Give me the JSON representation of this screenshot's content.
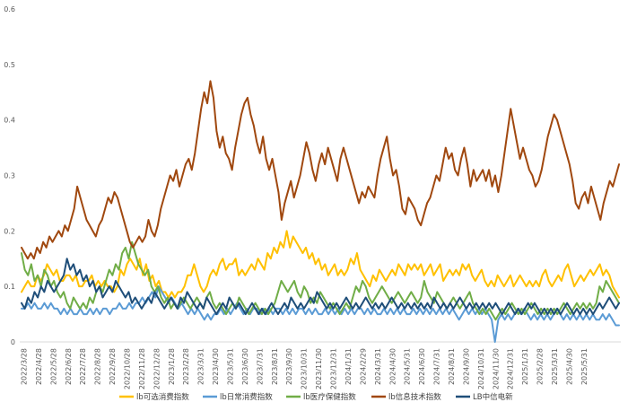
{
  "chart_data": {
    "type": "line",
    "title": "",
    "xlabel": "",
    "ylabel": "",
    "ylim": [
      0,
      0.6
    ],
    "yticks": [
      0,
      0.1,
      0.2,
      0.3,
      0.4,
      0.5,
      0.6
    ],
    "ytick_labels": [
      "0",
      "0.1",
      "0.2",
      "0.3",
      "0.4",
      "0.5",
      "0.6"
    ],
    "grid": false,
    "legend_position": "bottom",
    "x_tick_labels": [
      "2022/3/28",
      "2022/4/28",
      "2022/5/28",
      "2022/6/28",
      "2022/7/28",
      "2022/8/28",
      "2022/9/28",
      "2022/10/28",
      "2022/11/28",
      "2022/12/28",
      "2023/1/28",
      "2023/2/28",
      "2023/3/31",
      "2023/4/30",
      "2023/5/31",
      "2023/6/30",
      "2023/7/31",
      "2023/8/31",
      "2023/9/30",
      "2023/10/31",
      "2023/11/30",
      "2023/12/31",
      "2024/1/31",
      "2024/2/29",
      "2024/3/31",
      "2024/4/30",
      "2024/5/31",
      "2024/6/30",
      "2024/7/31",
      "2024/8/31",
      "2024/9/30",
      "2024/10/31",
      "2024/11/30",
      "2024/12/31",
      "2025/1/31",
      "2025/2/28",
      "2025/3/31",
      "2025/4/30",
      "2025/5/31"
    ],
    "series": [
      {
        "name": "lb可选消费指数",
        "color": "#FFC000",
        "values": [
          0.09,
          0.1,
          0.11,
          0.1,
          0.1,
          0.12,
          0.11,
          0.12,
          0.14,
          0.13,
          0.12,
          0.13,
          0.11,
          0.11,
          0.12,
          0.12,
          0.11,
          0.12,
          0.1,
          0.1,
          0.11,
          0.11,
          0.12,
          0.1,
          0.11,
          0.1,
          0.11,
          0.1,
          0.1,
          0.09,
          0.1,
          0.13,
          0.12,
          0.14,
          0.15,
          0.14,
          0.13,
          0.15,
          0.12,
          0.14,
          0.11,
          0.12,
          0.1,
          0.11,
          0.09,
          0.09,
          0.08,
          0.09,
          0.08,
          0.09,
          0.09,
          0.1,
          0.12,
          0.12,
          0.14,
          0.12,
          0.1,
          0.09,
          0.1,
          0.12,
          0.13,
          0.12,
          0.14,
          0.15,
          0.13,
          0.14,
          0.14,
          0.15,
          0.12,
          0.13,
          0.12,
          0.13,
          0.14,
          0.13,
          0.15,
          0.14,
          0.13,
          0.16,
          0.15,
          0.17,
          0.16,
          0.18,
          0.17,
          0.2,
          0.17,
          0.19,
          0.18,
          0.17,
          0.16,
          0.17,
          0.15,
          0.16,
          0.14,
          0.15,
          0.13,
          0.14,
          0.12,
          0.13,
          0.14,
          0.12,
          0.13,
          0.12,
          0.13,
          0.15,
          0.14,
          0.16,
          0.13,
          0.12,
          0.11,
          0.1,
          0.12,
          0.11,
          0.13,
          0.12,
          0.11,
          0.12,
          0.13,
          0.12,
          0.14,
          0.13,
          0.12,
          0.14,
          0.13,
          0.14,
          0.13,
          0.14,
          0.12,
          0.13,
          0.14,
          0.12,
          0.13,
          0.14,
          0.11,
          0.12,
          0.13,
          0.12,
          0.13,
          0.12,
          0.14,
          0.13,
          0.14,
          0.12,
          0.11,
          0.12,
          0.13,
          0.11,
          0.1,
          0.11,
          0.1,
          0.12,
          0.11,
          0.1,
          0.11,
          0.12,
          0.1,
          0.11,
          0.12,
          0.11,
          0.1,
          0.11,
          0.1,
          0.11,
          0.1,
          0.12,
          0.13,
          0.11,
          0.1,
          0.11,
          0.12,
          0.11,
          0.13,
          0.14,
          0.12,
          0.1,
          0.11,
          0.12,
          0.11,
          0.12,
          0.13,
          0.12,
          0.13,
          0.14,
          0.12,
          0.13,
          0.12,
          0.1,
          0.09,
          0.08
        ]
      },
      {
        "name": "lb日常消费指数",
        "color": "#5B9BD5",
        "values": [
          0.06,
          0.06,
          0.07,
          0.06,
          0.07,
          0.06,
          0.06,
          0.07,
          0.06,
          0.07,
          0.06,
          0.06,
          0.05,
          0.06,
          0.05,
          0.06,
          0.05,
          0.05,
          0.06,
          0.05,
          0.05,
          0.06,
          0.05,
          0.06,
          0.05,
          0.06,
          0.06,
          0.05,
          0.06,
          0.06,
          0.07,
          0.06,
          0.06,
          0.07,
          0.06,
          0.07,
          0.07,
          0.08,
          0.07,
          0.08,
          0.09,
          0.08,
          0.1,
          0.09,
          0.08,
          0.07,
          0.08,
          0.07,
          0.06,
          0.07,
          0.06,
          0.05,
          0.06,
          0.05,
          0.06,
          0.05,
          0.04,
          0.05,
          0.04,
          0.05,
          0.05,
          0.06,
          0.05,
          0.06,
          0.05,
          0.06,
          0.07,
          0.06,
          0.05,
          0.06,
          0.05,
          0.06,
          0.06,
          0.05,
          0.06,
          0.05,
          0.06,
          0.05,
          0.06,
          0.06,
          0.05,
          0.06,
          0.05,
          0.06,
          0.05,
          0.06,
          0.06,
          0.05,
          0.06,
          0.05,
          0.06,
          0.05,
          0.05,
          0.06,
          0.05,
          0.06,
          0.05,
          0.06,
          0.05,
          0.06,
          0.05,
          0.06,
          0.05,
          0.06,
          0.06,
          0.05,
          0.06,
          0.05,
          0.06,
          0.05,
          0.05,
          0.06,
          0.05,
          0.06,
          0.05,
          0.06,
          0.05,
          0.06,
          0.05,
          0.05,
          0.06,
          0.05,
          0.06,
          0.05,
          0.06,
          0.05,
          0.06,
          0.05,
          0.06,
          0.05,
          0.06,
          0.05,
          0.06,
          0.05,
          0.04,
          0.05,
          0.06,
          0.05,
          0.06,
          0.05,
          0.06,
          0.05,
          0.06,
          0.05,
          0.04,
          0.0,
          0.04,
          0.05,
          0.04,
          0.05,
          0.04,
          0.05,
          0.06,
          0.05,
          0.06,
          0.05,
          0.04,
          0.05,
          0.04,
          0.05,
          0.04,
          0.05,
          0.04,
          0.05,
          0.06,
          0.05,
          0.04,
          0.05,
          0.04,
          0.05,
          0.04,
          0.05,
          0.04,
          0.05,
          0.04,
          0.05,
          0.04,
          0.04,
          0.05,
          0.04,
          0.05,
          0.04,
          0.03,
          0.03
        ]
      },
      {
        "name": "lb医疗保健指数",
        "color": "#70AD47",
        "values": [
          0.16,
          0.13,
          0.12,
          0.14,
          0.11,
          0.12,
          0.1,
          0.13,
          0.12,
          0.1,
          0.11,
          0.09,
          0.08,
          0.09,
          0.07,
          0.06,
          0.08,
          0.07,
          0.06,
          0.07,
          0.06,
          0.08,
          0.07,
          0.09,
          0.1,
          0.09,
          0.11,
          0.13,
          0.12,
          0.14,
          0.13,
          0.16,
          0.17,
          0.15,
          0.18,
          0.16,
          0.14,
          0.13,
          0.12,
          0.13,
          0.1,
          0.09,
          0.1,
          0.08,
          0.07,
          0.08,
          0.06,
          0.07,
          0.06,
          0.07,
          0.08,
          0.07,
          0.06,
          0.07,
          0.08,
          0.07,
          0.06,
          0.08,
          0.09,
          0.07,
          0.06,
          0.07,
          0.06,
          0.05,
          0.06,
          0.07,
          0.06,
          0.08,
          0.07,
          0.06,
          0.05,
          0.06,
          0.07,
          0.06,
          0.05,
          0.06,
          0.05,
          0.06,
          0.07,
          0.09,
          0.11,
          0.1,
          0.09,
          0.1,
          0.11,
          0.09,
          0.08,
          0.1,
          0.09,
          0.07,
          0.08,
          0.07,
          0.09,
          0.08,
          0.07,
          0.06,
          0.07,
          0.06,
          0.05,
          0.06,
          0.07,
          0.06,
          0.08,
          0.1,
          0.09,
          0.11,
          0.1,
          0.08,
          0.07,
          0.08,
          0.09,
          0.1,
          0.09,
          0.08,
          0.07,
          0.08,
          0.09,
          0.08,
          0.07,
          0.08,
          0.09,
          0.08,
          0.07,
          0.08,
          0.11,
          0.09,
          0.08,
          0.07,
          0.09,
          0.08,
          0.07,
          0.06,
          0.07,
          0.08,
          0.07,
          0.06,
          0.07,
          0.08,
          0.09,
          0.07,
          0.06,
          0.05,
          0.06,
          0.05,
          0.06,
          0.05,
          0.04,
          0.05,
          0.06,
          0.05,
          0.06,
          0.07,
          0.06,
          0.05,
          0.06,
          0.05,
          0.06,
          0.07,
          0.06,
          0.05,
          0.06,
          0.05,
          0.06,
          0.05,
          0.06,
          0.05,
          0.06,
          0.07,
          0.06,
          0.05,
          0.06,
          0.07,
          0.06,
          0.07,
          0.06,
          0.07,
          0.06,
          0.07,
          0.1,
          0.09,
          0.11,
          0.1,
          0.09,
          0.08,
          0.07
        ]
      },
      {
        "name": "lb信息技术指数",
        "color": "#A0480F",
        "values": [
          0.17,
          0.16,
          0.15,
          0.16,
          0.15,
          0.17,
          0.16,
          0.18,
          0.17,
          0.19,
          0.18,
          0.19,
          0.2,
          0.19,
          0.21,
          0.2,
          0.22,
          0.24,
          0.28,
          0.26,
          0.24,
          0.22,
          0.21,
          0.2,
          0.19,
          0.21,
          0.22,
          0.24,
          0.26,
          0.25,
          0.27,
          0.26,
          0.24,
          0.22,
          0.2,
          0.18,
          0.17,
          0.18,
          0.19,
          0.18,
          0.19,
          0.22,
          0.2,
          0.19,
          0.21,
          0.24,
          0.26,
          0.28,
          0.3,
          0.29,
          0.31,
          0.28,
          0.3,
          0.32,
          0.33,
          0.31,
          0.34,
          0.38,
          0.42,
          0.45,
          0.43,
          0.47,
          0.44,
          0.38,
          0.35,
          0.37,
          0.34,
          0.33,
          0.31,
          0.35,
          0.38,
          0.41,
          0.43,
          0.44,
          0.41,
          0.39,
          0.36,
          0.34,
          0.37,
          0.33,
          0.31,
          0.33,
          0.3,
          0.27,
          0.22,
          0.25,
          0.27,
          0.29,
          0.26,
          0.28,
          0.3,
          0.33,
          0.36,
          0.34,
          0.31,
          0.29,
          0.32,
          0.34,
          0.32,
          0.35,
          0.33,
          0.31,
          0.29,
          0.33,
          0.35,
          0.33,
          0.31,
          0.29,
          0.27,
          0.25,
          0.27,
          0.26,
          0.28,
          0.27,
          0.26,
          0.3,
          0.33,
          0.35,
          0.37,
          0.33,
          0.3,
          0.31,
          0.28,
          0.24,
          0.23,
          0.26,
          0.25,
          0.24,
          0.22,
          0.21,
          0.23,
          0.25,
          0.26,
          0.28,
          0.3,
          0.29,
          0.32,
          0.35,
          0.33,
          0.34,
          0.31,
          0.3,
          0.33,
          0.35,
          0.32,
          0.28,
          0.31,
          0.29,
          0.3,
          0.31,
          0.29,
          0.31,
          0.28,
          0.3,
          0.27,
          0.3,
          0.34,
          0.38,
          0.42,
          0.39,
          0.36,
          0.33,
          0.35,
          0.33,
          0.31,
          0.3,
          0.28,
          0.29,
          0.31,
          0.34,
          0.37,
          0.39,
          0.41,
          0.4,
          0.38,
          0.36,
          0.34,
          0.32,
          0.29,
          0.25,
          0.24,
          0.26,
          0.27,
          0.25,
          0.28,
          0.26,
          0.24,
          0.22,
          0.25,
          0.27,
          0.29,
          0.28,
          0.3,
          0.32
        ]
      },
      {
        "name": "LB中信电新",
        "color": "#1F4E79",
        "values": [
          0.07,
          0.06,
          0.08,
          0.07,
          0.09,
          0.08,
          0.1,
          0.09,
          0.11,
          0.1,
          0.09,
          0.1,
          0.11,
          0.12,
          0.15,
          0.13,
          0.14,
          0.12,
          0.13,
          0.11,
          0.12,
          0.1,
          0.11,
          0.09,
          0.1,
          0.08,
          0.09,
          0.1,
          0.09,
          0.11,
          0.1,
          0.09,
          0.08,
          0.09,
          0.07,
          0.08,
          0.07,
          0.06,
          0.07,
          0.08,
          0.07,
          0.09,
          0.08,
          0.07,
          0.06,
          0.07,
          0.08,
          0.07,
          0.06,
          0.08,
          0.07,
          0.09,
          0.08,
          0.07,
          0.06,
          0.07,
          0.06,
          0.08,
          0.07,
          0.06,
          0.05,
          0.06,
          0.07,
          0.06,
          0.08,
          0.07,
          0.06,
          0.07,
          0.06,
          0.05,
          0.06,
          0.07,
          0.06,
          0.05,
          0.06,
          0.05,
          0.06,
          0.07,
          0.06,
          0.05,
          0.06,
          0.07,
          0.06,
          0.08,
          0.07,
          0.06,
          0.07,
          0.06,
          0.07,
          0.08,
          0.07,
          0.09,
          0.08,
          0.07,
          0.06,
          0.07,
          0.06,
          0.07,
          0.06,
          0.07,
          0.08,
          0.07,
          0.06,
          0.07,
          0.06,
          0.07,
          0.08,
          0.07,
          0.06,
          0.07,
          0.06,
          0.07,
          0.06,
          0.07,
          0.08,
          0.07,
          0.06,
          0.07,
          0.06,
          0.07,
          0.06,
          0.07,
          0.06,
          0.07,
          0.06,
          0.07,
          0.06,
          0.08,
          0.07,
          0.06,
          0.07,
          0.06,
          0.07,
          0.06,
          0.07,
          0.08,
          0.07,
          0.06,
          0.07,
          0.06,
          0.07,
          0.06,
          0.07,
          0.06,
          0.07,
          0.06,
          0.07,
          0.06,
          0.05,
          0.06,
          0.07,
          0.06,
          0.05,
          0.06,
          0.05,
          0.06,
          0.07,
          0.06,
          0.07,
          0.06,
          0.05,
          0.06,
          0.05,
          0.06,
          0.05,
          0.06,
          0.05,
          0.06,
          0.07,
          0.06,
          0.05,
          0.06,
          0.05,
          0.06,
          0.05,
          0.06,
          0.05,
          0.06,
          0.07,
          0.06,
          0.07,
          0.08,
          0.07,
          0.06,
          0.07
        ]
      }
    ]
  }
}
